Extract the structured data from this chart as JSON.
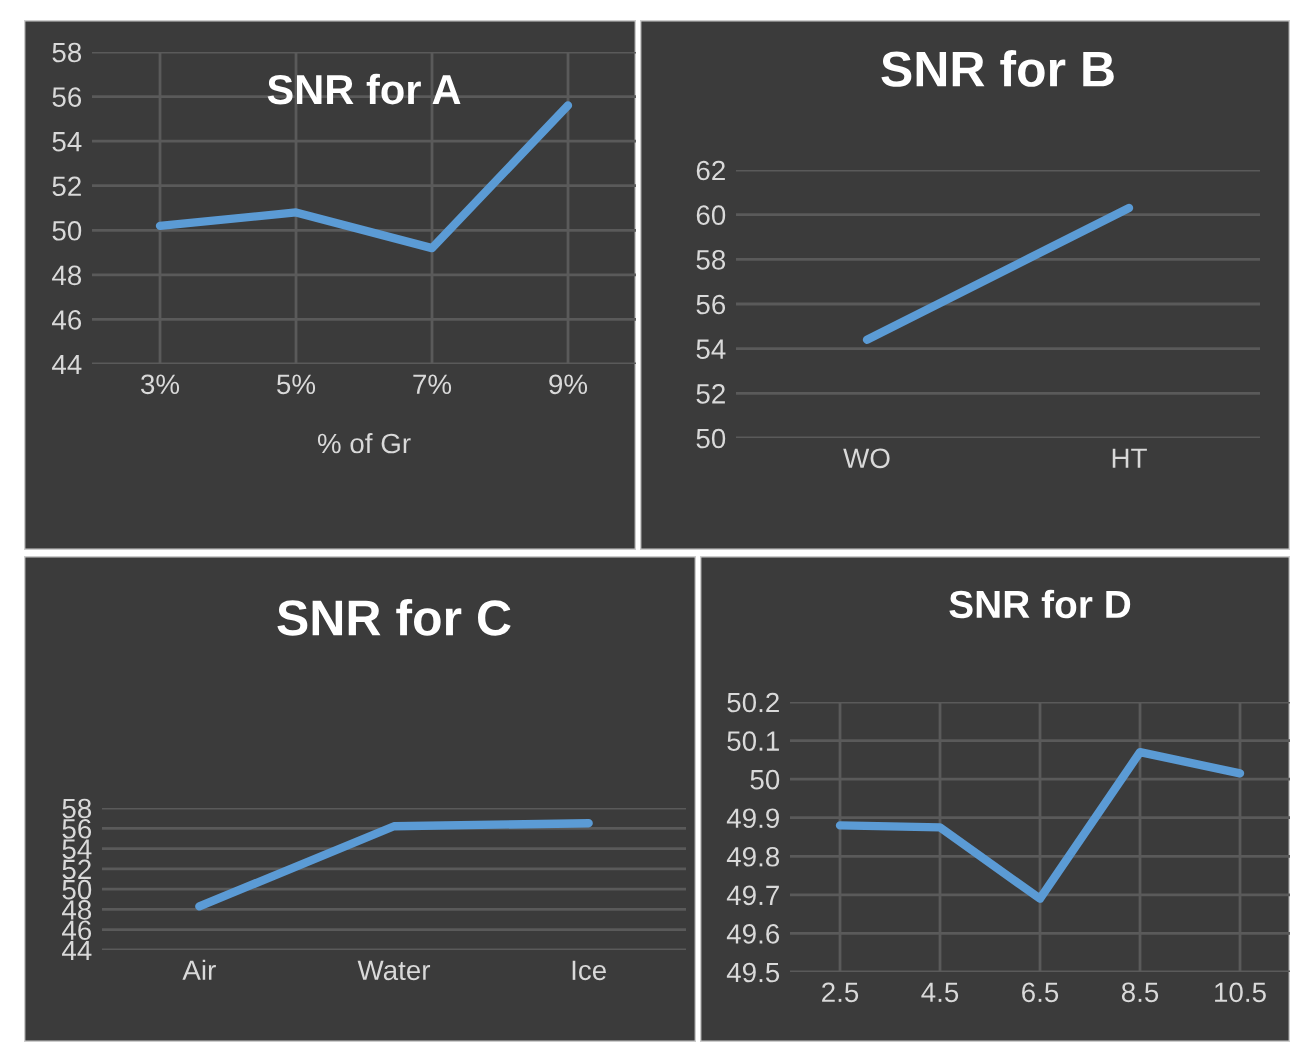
{
  "chart_data": [
    {
      "type": "line",
      "title": "SNR for A",
      "xlabel": "% of Gr",
      "categories": [
        "3%",
        "5%",
        "7%",
        "9%"
      ],
      "series": [
        {
          "color": "#5b9bd5",
          "values": [
            50.2,
            50.8,
            49.2,
            55.6
          ]
        }
      ],
      "ylim": [
        44,
        58
      ],
      "yticks": [
        44,
        46,
        48,
        50,
        52,
        54,
        56,
        58
      ],
      "grid": true,
      "marker": "none",
      "line_style": "solid"
    },
    {
      "type": "line",
      "title": "SNR for B",
      "categories": [
        "WO",
        "HT"
      ],
      "series": [
        {
          "color": "#5b9bd5",
          "values": [
            54.4,
            60.3
          ]
        }
      ],
      "ylim": [
        50,
        62
      ],
      "yticks": [
        50,
        52,
        54,
        56,
        58,
        60,
        62
      ],
      "grid": "y",
      "marker": "none",
      "line_style": "solid"
    },
    {
      "type": "line",
      "title": "SNR for C",
      "categories": [
        "Air",
        "Water",
        "Ice"
      ],
      "series": [
        {
          "color": "#5b9bd5",
          "values": [
            48.3,
            56.2,
            56.5
          ]
        }
      ],
      "ylim": [
        44,
        58
      ],
      "yticks": [
        44,
        46,
        48,
        50,
        52,
        54,
        56,
        58
      ],
      "grid": "y",
      "marker": "none",
      "line_style": "solid"
    },
    {
      "type": "line",
      "title": "SNR for D",
      "categories": [
        "2.5",
        "4.5",
        "6.5",
        "8.5",
        "10.5"
      ],
      "series": [
        {
          "color": "#5b9bd5",
          "values": [
            49.88,
            49.875,
            49.69,
            50.07,
            50.015
          ]
        }
      ],
      "ylim": [
        49.5,
        50.2
      ],
      "yticks": [
        49.5,
        49.6,
        49.7,
        49.8,
        49.9,
        50,
        50.1,
        50.2
      ],
      "grid": true,
      "marker": "none",
      "line_style": "solid"
    }
  ]
}
